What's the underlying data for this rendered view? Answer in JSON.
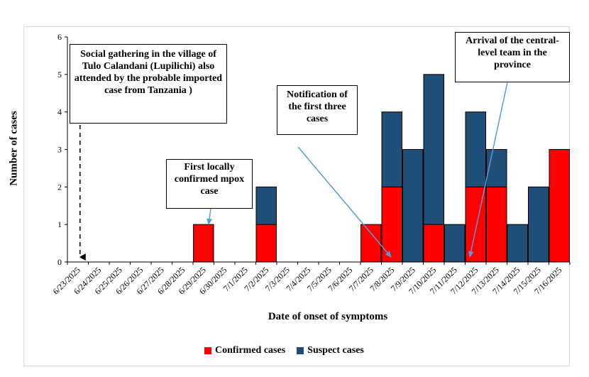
{
  "chart_data": {
    "type": "bar",
    "stacked": true,
    "categories": [
      "6/23/2025",
      "6/24/2025",
      "6/25/2025",
      "6/26/2025",
      "6/27/2025",
      "6/28/2025",
      "6/29/2025",
      "6/30/2025",
      "7/1/2025",
      "7/2/2025",
      "7/3/2025",
      "7/4/2025",
      "7/5/2025",
      "7/6/2025",
      "7/7/2025",
      "7/8/2025",
      "7/9/2025",
      "7/10/2025",
      "7/11/2025",
      "7/12/2025",
      "7/13/2025",
      "7/14/2025",
      "7/15/2025",
      "7/16/2025"
    ],
    "series": [
      {
        "name": "Confirmed cases",
        "color": "#ff0000",
        "values": [
          0,
          0,
          0,
          0,
          0,
          0,
          1,
          0,
          0,
          1,
          0,
          0,
          0,
          0,
          1,
          2,
          0,
          1,
          0,
          2,
          2,
          0,
          0,
          3
        ]
      },
      {
        "name": "Suspect cases",
        "color": "#1f4e79",
        "values": [
          0,
          0,
          0,
          0,
          0,
          0,
          0,
          0,
          0,
          1,
          0,
          0,
          0,
          0,
          0,
          2,
          3,
          4,
          1,
          2,
          1,
          1,
          2,
          0
        ]
      }
    ],
    "xlabel": "Date of onset of symptoms",
    "ylabel": "Number of cases",
    "ylim": [
      0,
      6
    ],
    "yticks": [
      0,
      1,
      2,
      3,
      4,
      5,
      6
    ],
    "grid": false,
    "legend": "bottom",
    "annotations": [
      {
        "id": "gathering",
        "text": "Social gathering in the village of Tulo Calandani (Lupilichi) also attended by the probable imported case from Tanzania )",
        "target": "6/23/2025"
      },
      {
        "id": "first-local",
        "text": "First locally confirmed mpox case",
        "target": "6/29/2025"
      },
      {
        "id": "notification",
        "text": "Notification of the first three cases",
        "target": "7/8/2025"
      },
      {
        "id": "arrival",
        "text": "Arrival of the central-level team in the province",
        "target": "7/12/2025"
      }
    ]
  }
}
